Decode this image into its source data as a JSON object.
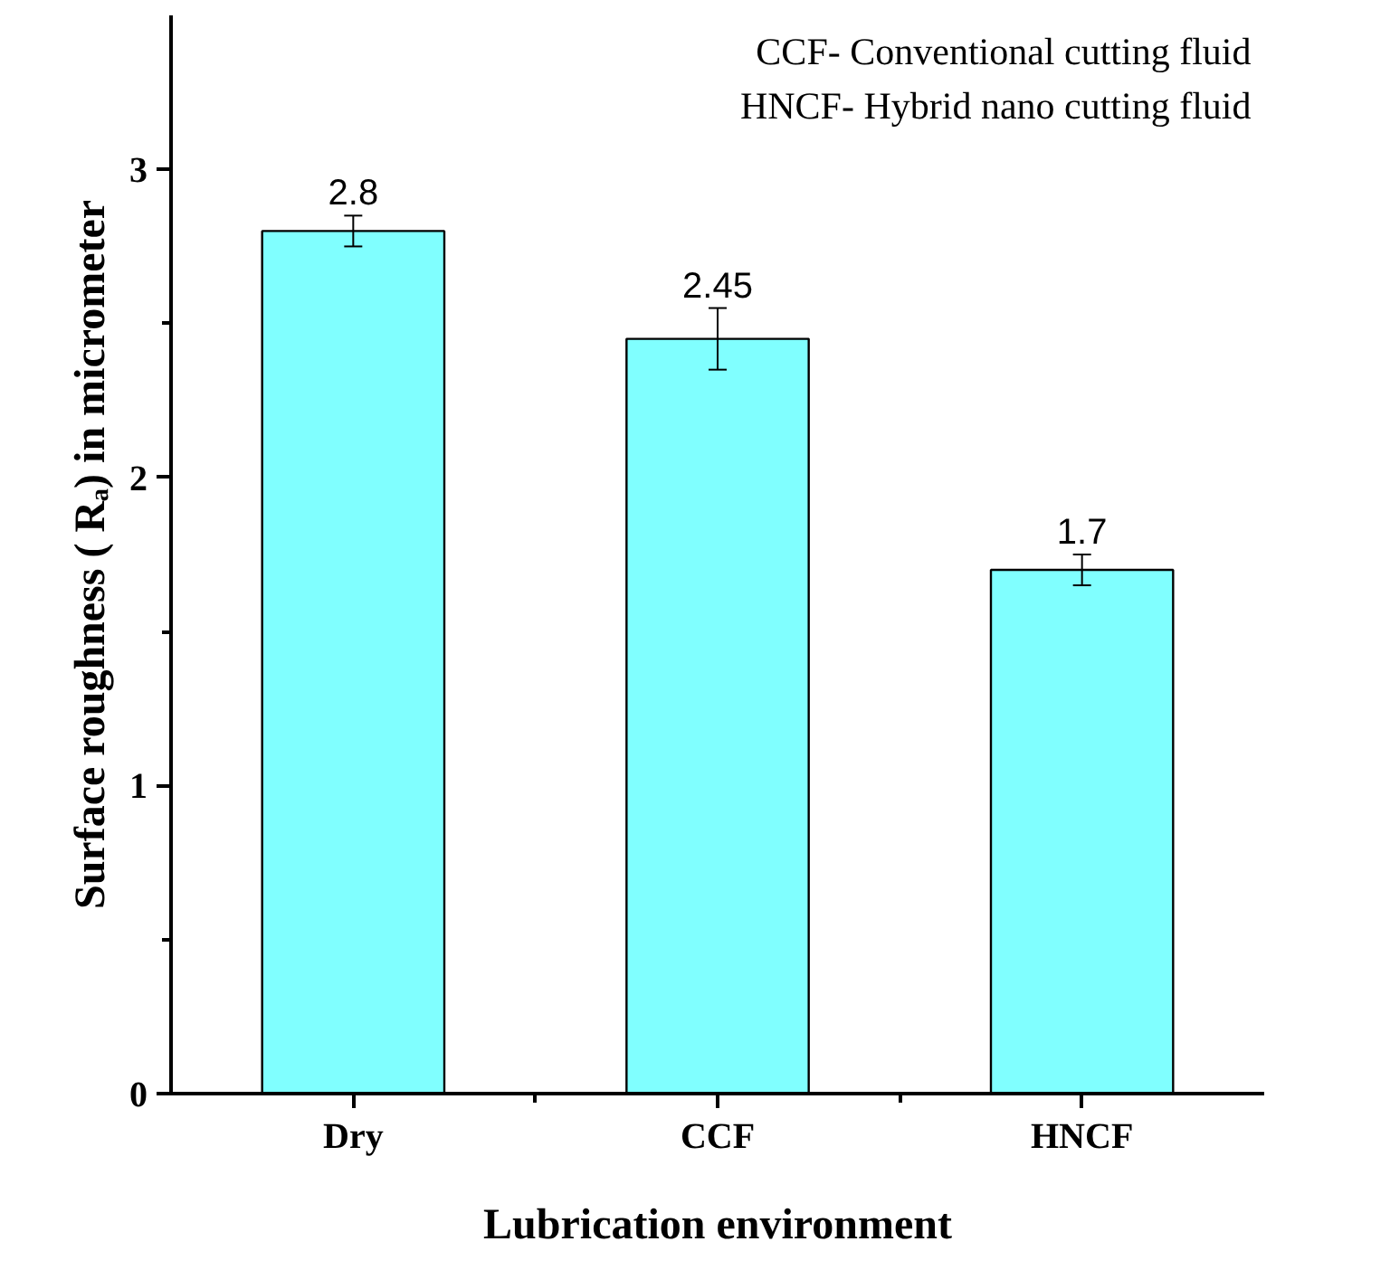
{
  "chart_data": {
    "type": "bar",
    "xlabel": "Lubrication environment",
    "ylabel": "Surface roughness ( Rₐ) in micrometer",
    "categories": [
      "Dry",
      "CCF",
      "HNCF"
    ],
    "values": [
      2.8,
      2.45,
      1.7
    ],
    "errors": [
      0.05,
      0.1,
      0.05
    ],
    "color": "#80ffff",
    "data_labels": true,
    "ylim": [
      0,
      3.5
    ],
    "yticks": [
      0,
      1,
      2,
      3
    ],
    "grid": false,
    "annotations": [
      "CCF-  Conventional cutting fluid",
      "HNCF-  Hybrid nano cutting fluid"
    ]
  }
}
